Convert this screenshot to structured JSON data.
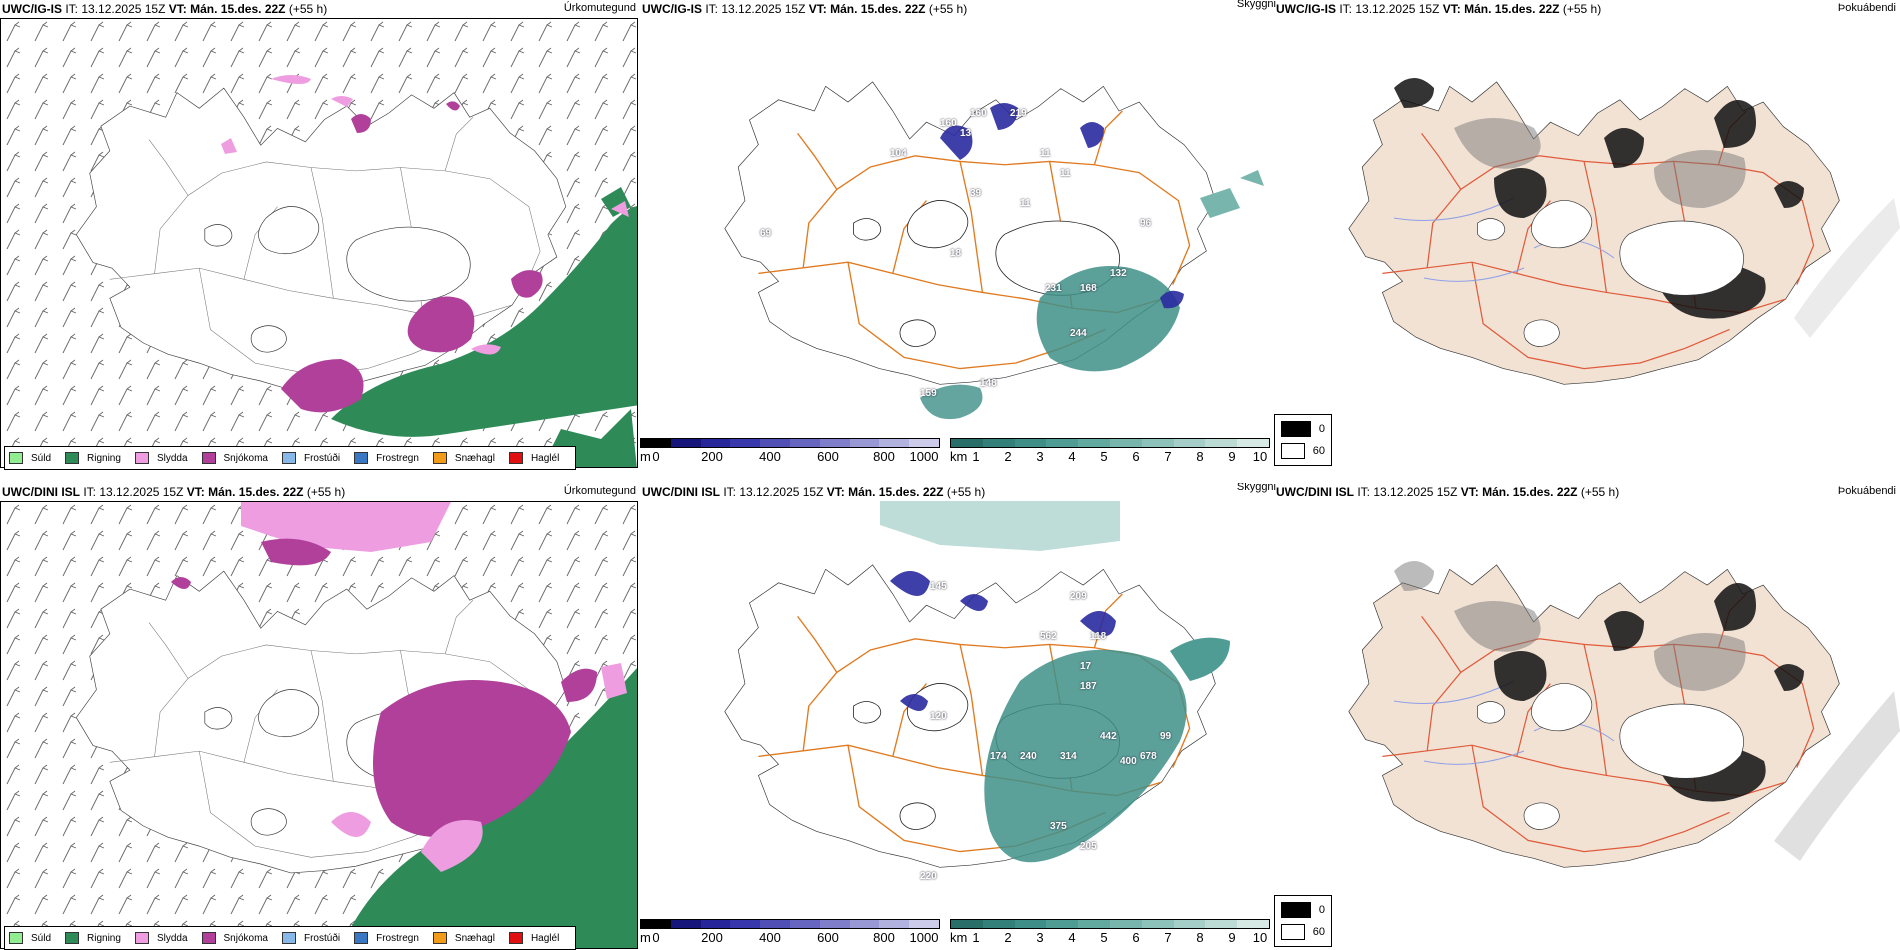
{
  "rows": [
    {
      "model": "UWC/IG-IS",
      "it_label": "IT:",
      "it": "13.12.2025 15Z",
      "vt_label": "VT:",
      "vt": "Mán. 15.des. 22Z",
      "lead": "(+55 h)"
    },
    {
      "model": "UWC/DINI ISL",
      "it_label": "IT:",
      "it": "13.12.2025 15Z",
      "vt_label": "VT:",
      "vt": "Mán. 15.des. 22Z",
      "lead": "(+55 h)"
    }
  ],
  "fields": {
    "precip_type": "Úrkomutegund",
    "cloud": "Skyggni",
    "fog": "Þokuábendi"
  },
  "precip_legend": [
    {
      "label": "Súld",
      "color": "#90ee90"
    },
    {
      "label": "Rigning",
      "color": "#2e8b57"
    },
    {
      "label": "Slydda",
      "color": "#ee9ee0"
    },
    {
      "label": "Snjókoma",
      "color": "#b0409a"
    },
    {
      "label": "Frostúði",
      "color": "#87b8e8"
    },
    {
      "label": "Frostregn",
      "color": "#3a78c4"
    },
    {
      "label": "Snæhagl",
      "color": "#f29a1a"
    },
    {
      "label": "Haglél",
      "color": "#e01010"
    }
  ],
  "cbar_m": {
    "unit": "m",
    "ticks": [
      "0",
      "200",
      "400",
      "600",
      "800",
      "1000"
    ],
    "colors": [
      "#000000",
      "#15157a",
      "#26269a",
      "#3838ac",
      "#4f4fb6",
      "#6666c0",
      "#7e7eca",
      "#9898d4",
      "#b2b2de",
      "#ccccea"
    ]
  },
  "cbar_km": {
    "unit": "km",
    "ticks": [
      "1",
      "2",
      "3",
      "4",
      "5",
      "6",
      "7",
      "8",
      "9",
      "10"
    ],
    "colors": [
      "#2a6e6a",
      "#33807a",
      "#3f8f88",
      "#4f9c94",
      "#62a9a0",
      "#77b5ad",
      "#8dc2ba",
      "#a4cec7",
      "#bcdbd5",
      "#d6e9e5"
    ]
  },
  "fog_key": [
    "0",
    "60"
  ],
  "ceiling_labels_top": [
    "160",
    "160",
    "219",
    "104",
    "13",
    "11",
    "11",
    "39",
    "11",
    "69",
    "18",
    "231",
    "168",
    "132",
    "244",
    "159",
    "148",
    "96"
  ],
  "ceiling_labels_bottom": [
    "145",
    "209",
    "562",
    "118",
    "17",
    "187",
    "120",
    "174",
    "240",
    "314",
    "442",
    "400",
    "678",
    "99",
    "375",
    "205",
    "220"
  ]
}
